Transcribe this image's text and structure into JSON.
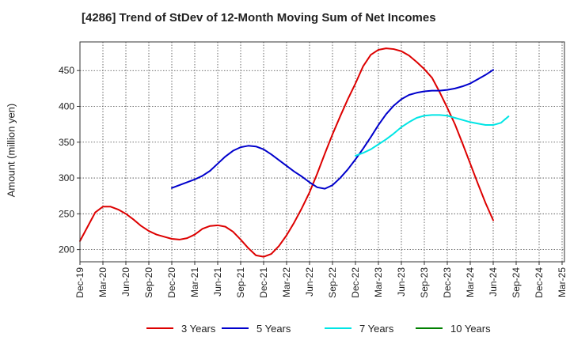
{
  "chart_data": {
    "type": "line",
    "title": "[4286]  Trend of StDev of 12-Month Moving Sum of Net Incomes",
    "xlabel": "",
    "ylabel": "Amount (million yen)",
    "ylim": [
      183,
      490
    ],
    "y_ticks": [
      200,
      250,
      300,
      350,
      400,
      450
    ],
    "x_ticks": [
      "Dec-19",
      "Mar-20",
      "Jun-20",
      "Sep-20",
      "Dec-20",
      "Mar-21",
      "Jun-21",
      "Sep-21",
      "Dec-21",
      "Mar-22",
      "Jun-22",
      "Sep-22",
      "Dec-22",
      "Mar-23",
      "Jun-23",
      "Sep-23",
      "Dec-23",
      "Mar-24",
      "Jun-24",
      "Sep-24",
      "Dec-24",
      "Mar-25"
    ],
    "grid": true,
    "legend_position": "bottom",
    "series": [
      {
        "name": "3 Years",
        "color": "#dd0000",
        "start_index": 0,
        "values": [
          212,
          232,
          252,
          260,
          260,
          256,
          250,
          242,
          233,
          226,
          221,
          218,
          215,
          214,
          216,
          221,
          229,
          233,
          234,
          232,
          225,
          214,
          202,
          192,
          190,
          194,
          205,
          220,
          238,
          258,
          280,
          306,
          334,
          361,
          386,
          410,
          432,
          456,
          472,
          479,
          481,
          480,
          477,
          471,
          462,
          452,
          440,
          420,
          398,
          375,
          348,
          320,
          292,
          265,
          241
        ]
      },
      {
        "name": "5 Years",
        "color": "#0000cc",
        "start_index": 12,
        "values": [
          286,
          290,
          294,
          298,
          303,
          310,
          320,
          330,
          338,
          343,
          345,
          344,
          340,
          333,
          325,
          317,
          309,
          302,
          294,
          287,
          285,
          290,
          300,
          312,
          326,
          341,
          357,
          374,
          389,
          401,
          410,
          416,
          419,
          421,
          422,
          422,
          423,
          425,
          428,
          432,
          438,
          444,
          451
        ]
      },
      {
        "name": "7 Years",
        "color": "#00e5e5",
        "start_index": 36,
        "values": [
          331,
          335,
          340,
          347,
          354,
          362,
          371,
          378,
          384,
          387,
          388,
          388,
          387,
          384,
          381,
          378,
          376,
          374,
          374,
          377,
          386
        ]
      },
      {
        "name": "10 Years",
        "color": "#008000",
        "start_index": 0,
        "values": []
      }
    ]
  }
}
